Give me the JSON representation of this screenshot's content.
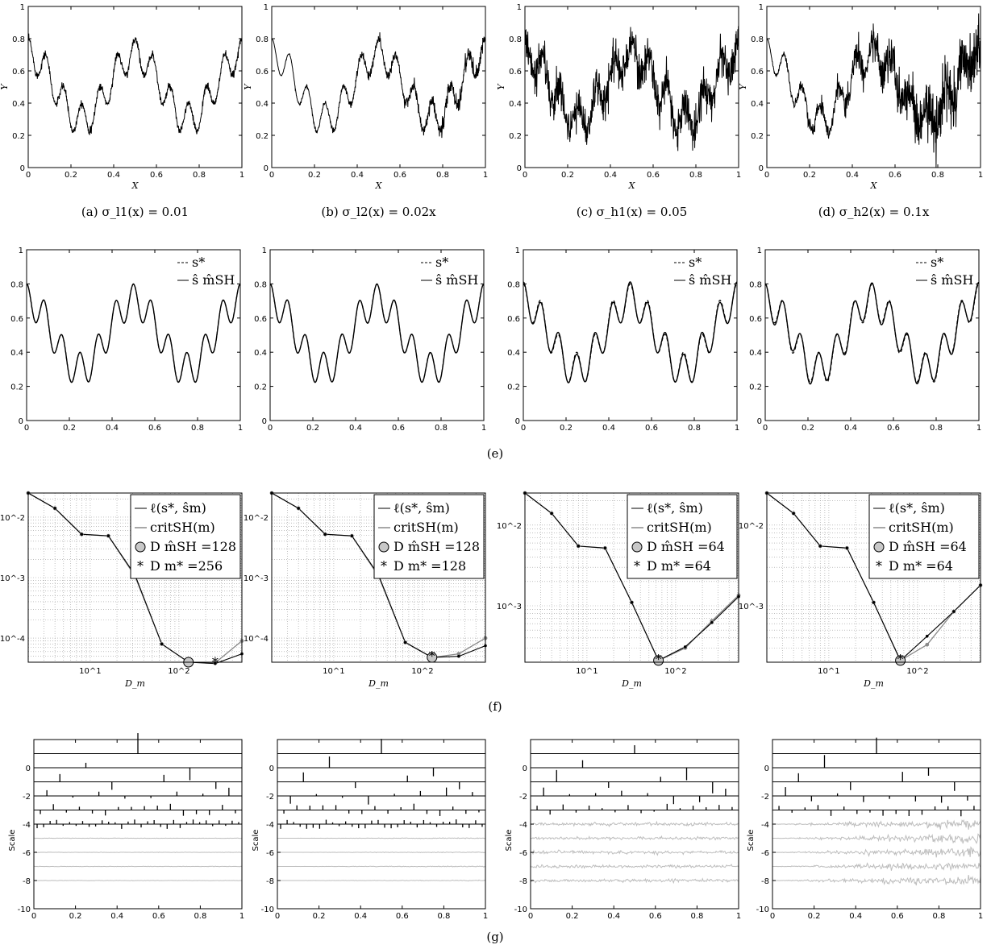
{
  "captions": {
    "a": "(a)  σ_l1(x) = 0.01",
    "b": "(b)  σ_l2(x) = 0.02x",
    "c": "(c)  σ_h1(x) = 0.05",
    "d": "(d)  σ_h2(x) = 0.1x",
    "e": "(e)",
    "f": "(f)",
    "g": "(g)"
  },
  "row1_axes": {
    "xlabel": "X",
    "ylabel": "Y"
  },
  "row2_legend": {
    "true_label": "s*",
    "est_label": "ŝ m̂SH"
  },
  "row3_axes": {
    "xlabel": "D_m"
  },
  "row4_axes": {
    "ylabel": "Scale"
  },
  "colors": {
    "black": "#000000",
    "gray": "#8a8a8a",
    "light_gray": "#bdbdbd"
  },
  "chart_data": [
    {
      "type": "line",
      "row": "noisy_data",
      "panel": "a",
      "x_range": [
        0,
        1
      ],
      "ylim": [
        0,
        1
      ],
      "noise": 0.012,
      "xticks": [
        "0",
        "0.2",
        "0.4",
        "0.6",
        "0.8",
        "1"
      ],
      "yticks": [
        "0",
        "0.2",
        "0.4",
        "0.6",
        "0.8",
        "1"
      ]
    },
    {
      "type": "line",
      "row": "noisy_data",
      "panel": "b",
      "x_range": [
        0,
        1
      ],
      "ylim": [
        0,
        1
      ],
      "noise_slope": 0.03,
      "xticks": [
        "0",
        "0.2",
        "0.4",
        "0.6",
        "0.8",
        "1"
      ],
      "yticks": [
        "0",
        "0.2",
        "0.4",
        "0.6",
        "0.8",
        "1"
      ]
    },
    {
      "type": "line",
      "row": "noisy_data",
      "panel": "c",
      "x_range": [
        0,
        1
      ],
      "ylim": [
        0,
        1
      ],
      "noise": 0.06,
      "xticks": [
        "0",
        "0.2",
        "0.4",
        "0.6",
        "0.8",
        "1"
      ],
      "yticks": [
        "0",
        "0.2",
        "0.4",
        "0.6",
        "0.8",
        "1"
      ]
    },
    {
      "type": "line",
      "row": "noisy_data",
      "panel": "d",
      "x_range": [
        0,
        1
      ],
      "ylim": [
        0,
        1
      ],
      "noise_slope": 0.11,
      "xticks": [
        "0",
        "0.2",
        "0.4",
        "0.6",
        "0.8",
        "1"
      ],
      "yticks": [
        "0",
        "0.2",
        "0.4",
        "0.6",
        "0.8",
        "1"
      ]
    },
    {
      "type": "line",
      "row": "estimates",
      "panel": 1,
      "ylim": [
        0,
        1
      ],
      "xticks": [
        "0",
        "0.2",
        "0.4",
        "0.6",
        "0.8",
        "1"
      ],
      "yticks": [
        "0",
        "0.2",
        "0.4",
        "0.6",
        "0.8",
        "1"
      ]
    },
    {
      "type": "line",
      "row": "estimates",
      "panel": 2,
      "ylim": [
        0,
        1
      ],
      "xticks": [
        "0",
        "0.2",
        "0.4",
        "0.6",
        "0.8",
        "1"
      ],
      "yticks": [
        "0",
        "0.2",
        "0.4",
        "0.6",
        "0.8",
        "1"
      ]
    },
    {
      "type": "line",
      "row": "estimates",
      "panel": 3,
      "ylim": [
        0,
        1
      ],
      "xticks": [
        "0",
        "0.2",
        "0.4",
        "0.6",
        "0.8",
        "1"
      ],
      "yticks": [
        "0",
        "0.2",
        "0.4",
        "0.6",
        "0.8",
        "1"
      ]
    },
    {
      "type": "line",
      "row": "estimates",
      "panel": 4,
      "ylim": [
        0,
        1
      ],
      "xticks": [
        "0",
        "0.2",
        "0.4",
        "0.6",
        "0.8",
        "1"
      ],
      "yticks": [
        "0",
        "0.2",
        "0.4",
        "0.6",
        "0.8",
        "1"
      ]
    },
    {
      "type": "line",
      "row": "risk",
      "panel": 1,
      "log_x": true,
      "log_y": true,
      "xlim": [
        2,
        512
      ],
      "ylim": [
        4e-05,
        0.025
      ],
      "x": [
        2,
        4,
        8,
        16,
        32,
        64,
        128,
        256,
        512
      ],
      "loss": [
        0.025,
        0.014,
        0.0052,
        0.0049,
        0.0011,
        8e-05,
        4e-05,
        3.8e-05,
        5.5e-05
      ],
      "crit": [
        0.025,
        0.014,
        0.0052,
        0.0049,
        0.00105,
        8e-05,
        4e-05,
        3.9e-05,
        9e-05
      ],
      "legend": [
        "ℓ(s*, ŝm)",
        "critSH(m)",
        "D m̂SH =128",
        "D m* =256"
      ],
      "d_hat": 128,
      "d_star": 256,
      "xticks": [
        "10^1",
        "10^2"
      ],
      "yticks": [
        "10^-2",
        "10^-3",
        "10^-4"
      ]
    },
    {
      "type": "line",
      "row": "risk",
      "panel": 2,
      "log_x": true,
      "log_y": true,
      "xlim": [
        2,
        512
      ],
      "ylim": [
        4e-05,
        0.025
      ],
      "x": [
        2,
        4,
        8,
        16,
        32,
        64,
        128,
        256,
        512
      ],
      "loss": [
        0.025,
        0.014,
        0.0052,
        0.0049,
        0.0011,
        8.5e-05,
        4.8e-05,
        5e-05,
        7.5e-05
      ],
      "crit": [
        0.025,
        0.014,
        0.0052,
        0.0049,
        0.00105,
        8.5e-05,
        4.8e-05,
        5.5e-05,
        0.0001
      ],
      "legend": [
        "ℓ(s*, ŝm)",
        "critSH(m)",
        "D m̂SH =128",
        "D m* =128"
      ],
      "d_hat": 128,
      "d_star": 128,
      "xticks": [
        "10^1",
        "10^2"
      ],
      "yticks": [
        "10^-2",
        "10^-3",
        "10^-4"
      ]
    },
    {
      "type": "line",
      "row": "risk",
      "panel": 3,
      "log_x": true,
      "log_y": true,
      "xlim": [
        2,
        512
      ],
      "ylim": [
        0.0002,
        0.025
      ],
      "x": [
        2,
        4,
        8,
        16,
        32,
        64,
        128,
        256,
        512
      ],
      "loss": [
        0.025,
        0.014,
        0.0055,
        0.0052,
        0.0011,
        0.00021,
        0.00031,
        0.00062,
        0.0013
      ],
      "crit": [
        0.025,
        0.014,
        0.0055,
        0.0052,
        0.0011,
        0.00021,
        0.0003,
        0.00065,
        0.00135
      ],
      "legend": [
        "ℓ(s*, ŝm)",
        "critSH(m)",
        "D m̂SH =64",
        "D m* =64"
      ],
      "d_hat": 64,
      "d_star": 64,
      "xticks": [
        "10^1",
        "10^2"
      ],
      "yticks": [
        "10^-2",
        "10^-3"
      ]
    },
    {
      "type": "line",
      "row": "risk",
      "panel": 4,
      "log_x": true,
      "log_y": true,
      "xlim": [
        2,
        512
      ],
      "ylim": [
        0.0002,
        0.025
      ],
      "x": [
        2,
        4,
        8,
        16,
        32,
        64,
        128,
        256,
        512
      ],
      "loss": [
        0.025,
        0.014,
        0.0055,
        0.0052,
        0.0011,
        0.00021,
        0.00042,
        0.00085,
        0.0018
      ],
      "crit": [
        0.025,
        0.014,
        0.0055,
        0.0052,
        0.0011,
        0.00021,
        0.00033,
        0.00085,
        0.0018
      ],
      "legend": [
        "ℓ(s*, ŝm)",
        "critSH(m)",
        "D m̂SH =64",
        "D m* =64"
      ],
      "d_hat": 64,
      "d_star": 64,
      "xticks": [
        "10^1",
        "10^2"
      ],
      "yticks": [
        "10^-2",
        "10^-3"
      ]
    },
    {
      "type": "scatter",
      "row": "wavelet",
      "panel": 1,
      "xlim": [
        0,
        1
      ],
      "ylim": [
        -10,
        2
      ],
      "kept_levels": [
        0,
        1,
        2,
        3,
        4,
        5
      ],
      "noise_levels_gray": [
        6,
        7,
        8,
        9
      ],
      "noise_amp": 0.02,
      "xticks": [
        "0",
        "0.2",
        "0.4",
        "0.6",
        "0.8",
        "1"
      ],
      "yticks": [
        "-10",
        "-8",
        "-6",
        "-4",
        "-2",
        "0"
      ]
    },
    {
      "type": "scatter",
      "row": "wavelet",
      "panel": 2,
      "xlim": [
        0,
        1
      ],
      "ylim": [
        -10,
        2
      ],
      "kept_levels": [
        0,
        1,
        2,
        3,
        4,
        5
      ],
      "noise_levels_gray": [
        6,
        7,
        8,
        9
      ],
      "noise_amp": 0.025,
      "xticks": [
        "0",
        "0.2",
        "0.4",
        "0.6",
        "0.8",
        "1"
      ],
      "yticks": [
        "-10",
        "-8",
        "-6",
        "-4",
        "-2",
        "0"
      ]
    },
    {
      "type": "scatter",
      "row": "wavelet",
      "panel": 3,
      "xlim": [
        0,
        1
      ],
      "ylim": [
        -10,
        2
      ],
      "kept_levels": [
        0,
        1,
        2,
        3,
        4,
        5
      ],
      "noise_levels_gray": [
        5,
        6,
        7,
        8,
        9
      ],
      "noise_amp": 0.15,
      "xticks": [
        "0",
        "0.2",
        "0.4",
        "0.6",
        "0.8",
        "1"
      ],
      "yticks": [
        "-10",
        "-8",
        "-6",
        "-4",
        "-2",
        "0"
      ]
    },
    {
      "type": "scatter",
      "row": "wavelet",
      "panel": 4,
      "xlim": [
        0,
        1
      ],
      "ylim": [
        -10,
        2
      ],
      "kept_levels": [
        0,
        1,
        2,
        3,
        4,
        5
      ],
      "noise_levels_gray": [
        5,
        6,
        7,
        8,
        9
      ],
      "noise_amp": 0.25,
      "xticks": [
        "0",
        "0.2",
        "0.4",
        "0.6",
        "0.8",
        "1"
      ],
      "yticks": [
        "-10",
        "-8",
        "-6",
        "-4",
        "-2",
        "0"
      ]
    }
  ]
}
